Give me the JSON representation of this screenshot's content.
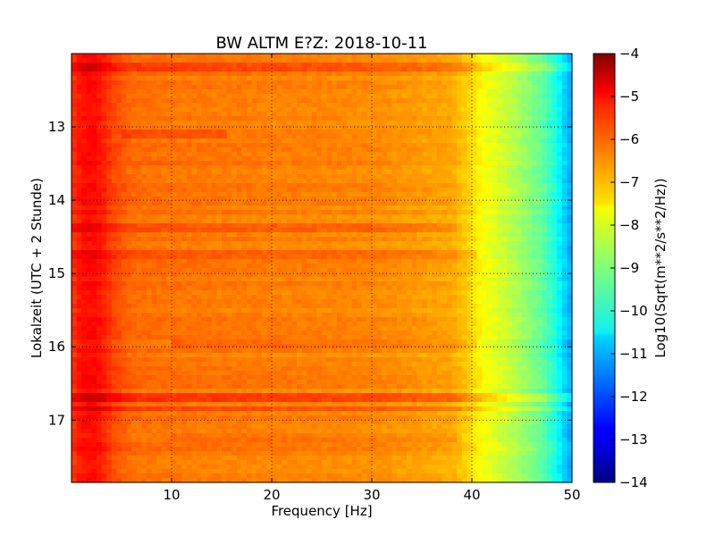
{
  "chart_data": {
    "type": "heatmap",
    "title": "BW ALTM E?Z: 2018-10-11",
    "xlabel": "Frequency [Hz]",
    "ylabel": "Lokalzeit (UTC + 2 Stunde)",
    "xlim": [
      0,
      50
    ],
    "ylim": [
      17.85,
      12.0
    ],
    "y_inverted": true,
    "x_ticks": [
      10,
      20,
      30,
      40,
      50
    ],
    "x_tick_labels": [
      "10",
      "20",
      "30",
      "40",
      "50"
    ],
    "y_ticks": [
      13,
      14,
      15,
      16,
      17
    ],
    "y_tick_labels": [
      "13",
      "14",
      "15",
      "16",
      "17"
    ],
    "grid": true,
    "colorbar": {
      "label": "Log10(Sqrt(m**2/s**2/Hz))",
      "range": [
        -14,
        -4
      ],
      "ticks": [
        -4,
        -5,
        -6,
        -7,
        -8,
        -9,
        -10,
        -11,
        -12,
        -13,
        -14
      ],
      "tick_labels": [
        "−4",
        "−5",
        "−6",
        "−7",
        "−8",
        "−9",
        "−10",
        "−11",
        "−12",
        "−13",
        "−14"
      ],
      "colormap": "jet"
    },
    "spectral_profile": {
      "frequency_hz": [
        0,
        1,
        2,
        3,
        4,
        6,
        10,
        20,
        30,
        38,
        40,
        41,
        43,
        45,
        47,
        48,
        49,
        50
      ],
      "log10_amplitude": [
        -5.8,
        -5.4,
        -5.3,
        -5.5,
        -5.9,
        -6.3,
        -6.4,
        -6.5,
        -6.6,
        -6.9,
        -7.4,
        -7.8,
        -8.2,
        -8.7,
        -9.3,
        -9.8,
        -10.5,
        -11.2
      ]
    },
    "time_events": [
      {
        "time": 12.2,
        "f_start": 0,
        "f_end": 50,
        "delta": 0.5
      },
      {
        "time": 13.1,
        "f_start": 5,
        "f_end": 15,
        "delta": 0.3
      },
      {
        "time": 14.4,
        "f_start": 0,
        "f_end": 38,
        "delta": 0.3
      },
      {
        "time": 14.75,
        "f_start": 0,
        "f_end": 40,
        "delta": 0.35
      },
      {
        "time": 15.95,
        "f_start": 10,
        "f_end": 40,
        "delta": 0.3
      },
      {
        "time": 16.7,
        "f_start": 0,
        "f_end": 50,
        "delta": 0.7
      },
      {
        "time": 16.85,
        "f_start": 0,
        "f_end": 50,
        "delta": 0.4
      },
      {
        "time": 17.25,
        "f_start": 10,
        "f_end": 38,
        "delta": 0.2
      }
    ]
  }
}
